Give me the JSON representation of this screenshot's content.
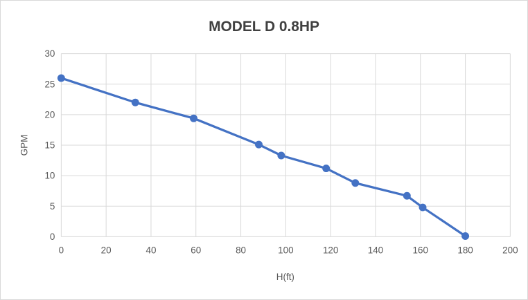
{
  "chart_data": {
    "type": "line",
    "title": "MODEL D 0.8HP",
    "xlabel": "H(ft)",
    "ylabel": "GPM",
    "x": [
      0,
      33,
      59,
      88,
      98,
      118,
      131,
      154,
      161,
      180
    ],
    "y": [
      26,
      22,
      19.4,
      15.1,
      13.3,
      11.2,
      8.8,
      6.7,
      4.8,
      0.1
    ],
    "xlim": [
      0,
      200
    ],
    "ylim": [
      0,
      30
    ],
    "xticks": [
      0,
      20,
      40,
      60,
      80,
      100,
      120,
      140,
      160,
      180,
      200
    ],
    "yticks": [
      0,
      5,
      10,
      15,
      20,
      25,
      30
    ],
    "grid": true,
    "legend": "none",
    "colors": {
      "series": "#4472C4",
      "gridline": "#D9D9D9",
      "tick_label": "#595959",
      "axis_title": "#595959",
      "title": "#404040",
      "background": "#FFFFFF",
      "border": "#D9D9D9"
    }
  }
}
